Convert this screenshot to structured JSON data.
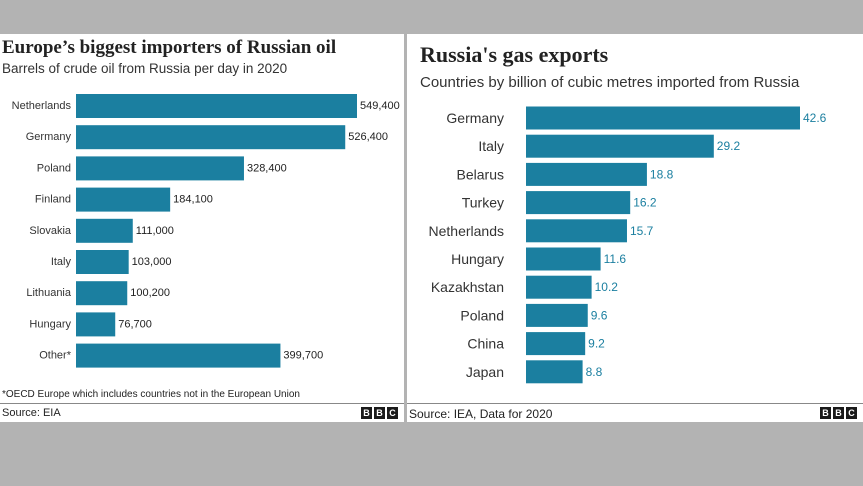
{
  "chart_data": [
    {
      "type": "bar",
      "orientation": "horizontal",
      "title": "Europe’s biggest importers of Russian oil",
      "subtitle": "Barrels of crude oil from Russia per day in 2020",
      "categories": [
        "Netherlands",
        "Germany",
        "Poland",
        "Finland",
        "Slovakia",
        "Italy",
        "Lithuania",
        "Hungary",
        "Other*"
      ],
      "values": [
        549400,
        526400,
        328400,
        184100,
        111000,
        103000,
        100200,
        76700,
        399700
      ],
      "value_labels": [
        "549,400",
        "526,400",
        "328,400",
        "184,100",
        "111,000",
        "103,000",
        "100,200",
        "76,700",
        "399,700"
      ],
      "footnote": "*OECD Europe which includes countries not in the European Union",
      "source": "Source: EIA",
      "bar_color": "#1b7fa0",
      "grid": false
    },
    {
      "type": "bar",
      "orientation": "horizontal",
      "title": "Russia's gas exports",
      "subtitle": "Countries by billion of cubic metres imported from Russia",
      "categories": [
        "Germany",
        "Italy",
        "Belarus",
        "Turkey",
        "Netherlands",
        "Hungary",
        "Kazakhstan",
        "Poland",
        "China",
        "Japan"
      ],
      "values": [
        42.6,
        29.2,
        18.8,
        16.2,
        15.7,
        11.6,
        10.2,
        9.6,
        9.2,
        8.8
      ],
      "value_labels": [
        "42.6",
        "29.2",
        "18.8",
        "16.2",
        "15.7",
        "11.6",
        "10.2",
        "9.6",
        "9.2",
        "8.8"
      ],
      "source": "Source: IEA, Data for 2020",
      "bar_color": "#1b7fa0",
      "value_label_color": "#1b7fa0",
      "grid": false
    }
  ],
  "branding": {
    "logo_letters": [
      "B",
      "B",
      "C"
    ]
  }
}
